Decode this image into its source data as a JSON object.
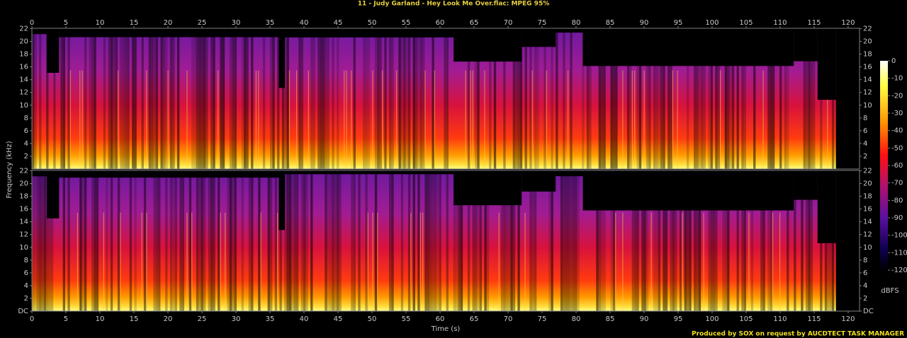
{
  "chart_data": {
    "type": "spectrogram",
    "title": "11 - Judy Garland - Hey Look Me Over.flac: MPEG 95%",
    "xlabel": "Time (s)",
    "ylabel": "Frequency (kHz)",
    "xlim": [
      0,
      121.67
    ],
    "xticks": [
      0,
      5,
      10,
      15,
      20,
      25,
      30,
      35,
      40,
      45,
      50,
      55,
      60,
      65,
      70,
      75,
      80,
      85,
      90,
      95,
      100,
      105,
      110,
      115,
      120
    ],
    "panels": [
      {
        "ylim": [
          0,
          22.05
        ],
        "yticks": [
          2,
          4,
          6,
          8,
          10,
          12,
          14,
          16,
          18,
          20,
          22
        ]
      },
      {
        "ylim": [
          0,
          22.05
        ],
        "yticks": [
          {
            "value": 0,
            "label": "DC"
          },
          2,
          4,
          6,
          8,
          10,
          12,
          14,
          16,
          18,
          20,
          22
        ]
      }
    ],
    "colorbar": {
      "lim": [
        -120,
        0
      ],
      "ticks": [
        0,
        -10,
        -20,
        -30,
        -40,
        -50,
        -60,
        -70,
        -80,
        -90,
        -100,
        -110,
        -120
      ],
      "label": "dBFS"
    },
    "footer": "Produced by SOX on request by AUCDTECT TASK MANAGER"
  }
}
